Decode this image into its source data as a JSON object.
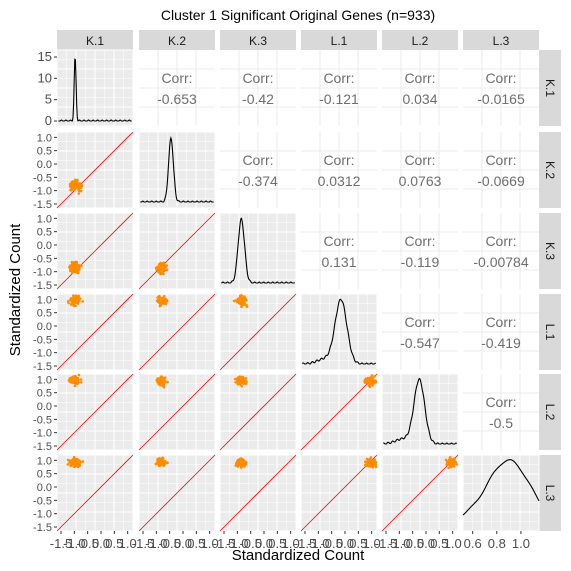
{
  "chart_data": {
    "type": "scatter-matrix",
    "title": "Cluster 1 Significant Original Genes (n=933)",
    "xlabel": "Standardized Count",
    "ylabel": "Standardized Count",
    "variables": [
      "K.1",
      "K.2",
      "K.3",
      "L.1",
      "L.2",
      "L.3"
    ],
    "corr_label": "Corr:",
    "correlations": [
      [
        "K.1",
        "K.2",
        "-0.653"
      ],
      [
        "K.1",
        "K.3",
        "-0.42"
      ],
      [
        "K.1",
        "L.1",
        "-0.121"
      ],
      [
        "K.1",
        "L.2",
        "0.034"
      ],
      [
        "K.1",
        "L.3",
        "-0.0165"
      ],
      [
        "K.2",
        "K.3",
        "-0.374"
      ],
      [
        "K.2",
        "L.1",
        "0.0312"
      ],
      [
        "K.2",
        "L.2",
        "0.0763"
      ],
      [
        "K.2",
        "L.3",
        "-0.0669"
      ],
      [
        "K.3",
        "L.1",
        "0.131"
      ],
      [
        "K.3",
        "L.2",
        "-0.119"
      ],
      [
        "K.3",
        "L.3",
        "-0.00784"
      ],
      [
        "L.1",
        "L.2",
        "-0.547"
      ],
      [
        "L.1",
        "L.3",
        "-0.419"
      ],
      [
        "L.2",
        "L.3",
        "-0.5"
      ]
    ],
    "y_axis_ticks": {
      "top_density": [
        "15",
        "10",
        "5",
        "0"
      ],
      "rows": [
        "1.0",
        "0.5",
        "0.0",
        "-0.5",
        "-1.0",
        "-1.5"
      ]
    },
    "x_axis_ticks": {
      "standard": [
        "-1.5",
        "-0.5",
        "0.5",
        "1.0"
      ],
      "standard_overlap": [
        "-1.0",
        "0.0"
      ],
      "last_column": [
        "0.6",
        "0.8",
        "1.0"
      ]
    },
    "density_peaks": [
      {
        "variable": "K.1",
        "mode": -0.97,
        "height": 14.5
      },
      {
        "variable": "K.2",
        "mode": -0.45
      },
      {
        "variable": "K.3",
        "mode": -0.85
      },
      {
        "variable": "L.1",
        "mode": -0.15
      },
      {
        "variable": "L.2",
        "mode": -0.25
      },
      {
        "variable": "L.3",
        "mode": 0.9
      }
    ],
    "scatter_color": "#ff8c00",
    "reference_line_color": "#ff0000",
    "panel_background": "#ebebeb",
    "strip_background": "#d9d9d9",
    "grid": true
  }
}
